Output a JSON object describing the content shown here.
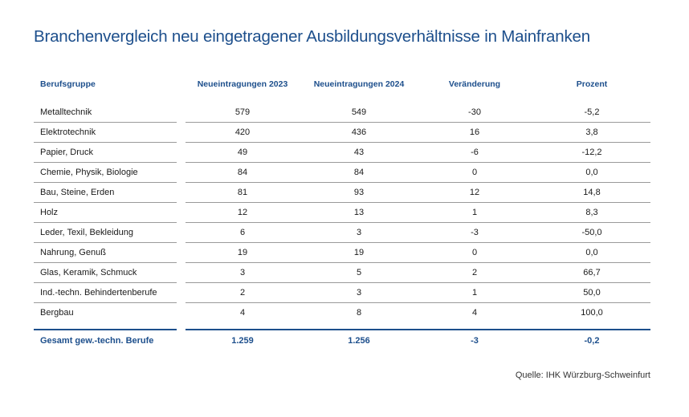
{
  "title": "Branchenvergleich neu eingetragener Ausbildungsverhältnisse in Mainfranken",
  "colors": {
    "accent": "#1d4f8c",
    "rule": "#9a9a9a"
  },
  "table": {
    "headers": [
      "Berufsgruppe",
      "Neueintragungen 2023",
      "Neueintragungen 2024",
      "Veränderung",
      "Prozent"
    ],
    "rows": [
      [
        "Metalltechnik",
        "579",
        "549",
        "-30",
        "-5,2"
      ],
      [
        "Elektrotechnik",
        "420",
        "436",
        "16",
        "3,8"
      ],
      [
        "Papier, Druck",
        "49",
        "43",
        "-6",
        "-12,2"
      ],
      [
        "Chemie, Physik, Biologie",
        "84",
        "84",
        "0",
        "0,0"
      ],
      [
        "Bau, Steine, Erden",
        "81",
        "93",
        "12",
        "14,8"
      ],
      [
        "Holz",
        "12",
        "13",
        "1",
        "8,3"
      ],
      [
        "Leder, Texil, Bekleidung",
        "6",
        "3",
        "-3",
        "-50,0"
      ],
      [
        "Nahrung, Genuß",
        "19",
        "19",
        "0",
        "0,0"
      ],
      [
        "Glas, Keramik, Schmuck",
        "3",
        "5",
        "2",
        "66,7"
      ],
      [
        "Ind.-techn. Behindertenberufe",
        "2",
        "3",
        "1",
        "50,0"
      ],
      [
        "Bergbau",
        "4",
        "8",
        "4",
        "100,0"
      ]
    ],
    "total": [
      "Gesamt gew.-techn. Berufe",
      "1.259",
      "1.256",
      "-3",
      "-0,2"
    ]
  },
  "source": "Quelle: IHK Würzburg-Schweinfurt"
}
